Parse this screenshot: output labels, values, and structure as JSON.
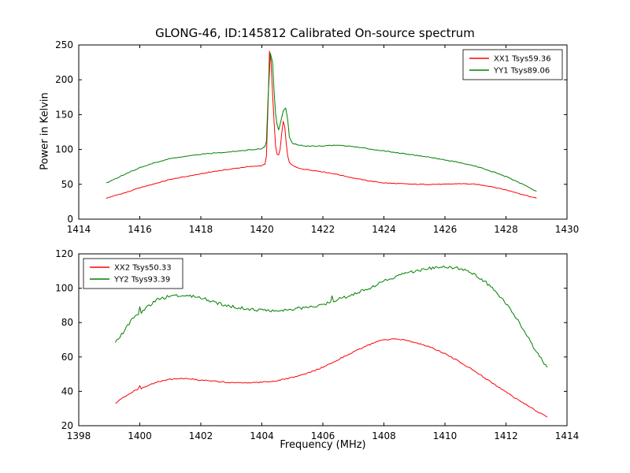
{
  "title": "GLONG-46, ID:145812 Calibrated On-source spectrum",
  "xlabel": "Frequency (MHz)",
  "ylabel": "Power in Kelvin",
  "colors": {
    "xx": "#ff0000",
    "yy": "#008000",
    "axes": "#000000",
    "background": "#ffffff"
  },
  "chart_data": [
    {
      "type": "line",
      "xlim": [
        1414,
        1430
      ],
      "ylim": [
        0,
        250
      ],
      "xticks": [
        1414,
        1416,
        1418,
        1420,
        1422,
        1424,
        1426,
        1428,
        1430
      ],
      "yticks": [
        0,
        50,
        100,
        150,
        200,
        250
      ],
      "grid": false,
      "legend_position": "upper right",
      "series": [
        {
          "name": "XX1 Tsys59.36",
          "color": "#ff0000",
          "noise": 0.5,
          "points": [
            [
              1414.9,
              30
            ],
            [
              1415.2,
              34
            ],
            [
              1415.6,
              39
            ],
            [
              1416.0,
              45
            ],
            [
              1416.5,
              51
            ],
            [
              1417.0,
              57
            ],
            [
              1417.5,
              61
            ],
            [
              1418.0,
              65
            ],
            [
              1418.5,
              69
            ],
            [
              1419.0,
              72
            ],
            [
              1419.5,
              75
            ],
            [
              1419.8,
              76
            ],
            [
              1420.0,
              77
            ],
            [
              1420.1,
              79
            ],
            [
              1420.15,
              90
            ],
            [
              1420.2,
              160
            ],
            [
              1420.25,
              241
            ],
            [
              1420.3,
              228
            ],
            [
              1420.35,
              180
            ],
            [
              1420.4,
              140
            ],
            [
              1420.45,
              105
            ],
            [
              1420.5,
              93
            ],
            [
              1420.55,
              92
            ],
            [
              1420.6,
              100
            ],
            [
              1420.65,
              122
            ],
            [
              1420.7,
              140
            ],
            [
              1420.75,
              133
            ],
            [
              1420.8,
              108
            ],
            [
              1420.85,
              90
            ],
            [
              1420.9,
              82
            ],
            [
              1421.0,
              77
            ],
            [
              1421.2,
              73
            ],
            [
              1421.5,
              71
            ],
            [
              1422.0,
              68
            ],
            [
              1422.5,
              64
            ],
            [
              1423.0,
              59
            ],
            [
              1423.5,
              55
            ],
            [
              1424.0,
              52
            ],
            [
              1424.5,
              51
            ],
            [
              1425.0,
              50
            ],
            [
              1425.5,
              50
            ],
            [
              1426.0,
              50
            ],
            [
              1426.5,
              51
            ],
            [
              1427.0,
              50
            ],
            [
              1427.5,
              47
            ],
            [
              1428.0,
              42
            ],
            [
              1428.5,
              36
            ],
            [
              1429.0,
              30
            ]
          ]
        },
        {
          "name": "YY1 Tsys89.06",
          "color": "#008000",
          "noise": 0.6,
          "points": [
            [
              1414.9,
              52
            ],
            [
              1415.2,
              58
            ],
            [
              1415.6,
              66
            ],
            [
              1416.0,
              74
            ],
            [
              1416.5,
              81
            ],
            [
              1417.0,
              87
            ],
            [
              1417.5,
              90
            ],
            [
              1418.0,
              93
            ],
            [
              1418.5,
              95
            ],
            [
              1419.0,
              97
            ],
            [
              1419.5,
              99
            ],
            [
              1419.8,
              100
            ],
            [
              1420.0,
              101
            ],
            [
              1420.1,
              104
            ],
            [
              1420.15,
              112
            ],
            [
              1420.2,
              170
            ],
            [
              1420.28,
              238
            ],
            [
              1420.35,
              225
            ],
            [
              1420.4,
              185
            ],
            [
              1420.45,
              152
            ],
            [
              1420.5,
              135
            ],
            [
              1420.55,
              128
            ],
            [
              1420.6,
              136
            ],
            [
              1420.7,
              155
            ],
            [
              1420.78,
              160
            ],
            [
              1420.85,
              142
            ],
            [
              1420.9,
              118
            ],
            [
              1421.0,
              109
            ],
            [
              1421.2,
              106
            ],
            [
              1421.5,
              105
            ],
            [
              1422.0,
              105
            ],
            [
              1422.3,
              106
            ],
            [
              1422.6,
              106
            ],
            [
              1423.0,
              104
            ],
            [
              1423.5,
              101
            ],
            [
              1424.0,
              98
            ],
            [
              1424.5,
              95
            ],
            [
              1425.0,
              92
            ],
            [
              1425.5,
              89
            ],
            [
              1426.0,
              85
            ],
            [
              1426.5,
              81
            ],
            [
              1427.0,
              76
            ],
            [
              1427.5,
              69
            ],
            [
              1428.0,
              61
            ],
            [
              1428.5,
              51
            ],
            [
              1429.0,
              40
            ]
          ]
        }
      ]
    },
    {
      "type": "line",
      "xlim": [
        1398,
        1414
      ],
      "ylim": [
        20,
        120
      ],
      "xticks": [
        1398,
        1400,
        1402,
        1404,
        1406,
        1408,
        1410,
        1412,
        1414
      ],
      "yticks": [
        20,
        40,
        60,
        80,
        100,
        120
      ],
      "grid": false,
      "legend_position": "upper left",
      "series": [
        {
          "name": "XX2 Tsys50.33",
          "color": "#ff0000",
          "noise": 0.35,
          "points": [
            [
              1399.2,
              33
            ],
            [
              1399.4,
              36
            ],
            [
              1399.6,
              38
            ],
            [
              1399.8,
              40
            ],
            [
              1399.95,
              41.5
            ],
            [
              1400.0,
              43
            ],
            [
              1400.05,
              41.5
            ],
            [
              1400.3,
              43.5
            ],
            [
              1400.6,
              45.5
            ],
            [
              1401.0,
              47
            ],
            [
              1401.3,
              47.5
            ],
            [
              1401.6,
              47.3
            ],
            [
              1402.0,
              46.5
            ],
            [
              1402.5,
              45.7
            ],
            [
              1403.0,
              45.2
            ],
            [
              1403.5,
              45.0
            ],
            [
              1404.0,
              45.3
            ],
            [
              1404.5,
              46.2
            ],
            [
              1405.0,
              48
            ],
            [
              1405.5,
              50.5
            ],
            [
              1406.0,
              54
            ],
            [
              1406.5,
              58.5
            ],
            [
              1407.0,
              63
            ],
            [
              1407.5,
              67
            ],
            [
              1407.8,
              69
            ],
            [
              1408.0,
              70
            ],
            [
              1408.3,
              70.3
            ],
            [
              1408.6,
              70
            ],
            [
              1409.0,
              68.5
            ],
            [
              1409.5,
              66
            ],
            [
              1410.0,
              62
            ],
            [
              1410.5,
              57
            ],
            [
              1411.0,
              51.5
            ],
            [
              1411.5,
              45.5
            ],
            [
              1412.0,
              39.5
            ],
            [
              1412.5,
              34
            ],
            [
              1413.0,
              28.5
            ],
            [
              1413.35,
              25
            ]
          ]
        },
        {
          "name": "YY2 Tsys93.39",
          "color": "#008000",
          "noise": 0.9,
          "points": [
            [
              1399.2,
              68
            ],
            [
              1399.4,
              73
            ],
            [
              1399.6,
              78
            ],
            [
              1399.8,
              83
            ],
            [
              1399.95,
              85
            ],
            [
              1400.0,
              89
            ],
            [
              1400.05,
              86
            ],
            [
              1400.3,
              90
            ],
            [
              1400.6,
              93.5
            ],
            [
              1401.0,
              95.5
            ],
            [
              1401.3,
              96
            ],
            [
              1401.6,
              95.8
            ],
            [
              1402.0,
              94.5
            ],
            [
              1402.5,
              91.5
            ],
            [
              1403.0,
              89.5
            ],
            [
              1403.5,
              88
            ],
            [
              1404.0,
              87.2
            ],
            [
              1404.5,
              87
            ],
            [
              1405.0,
              87.8
            ],
            [
              1405.5,
              89
            ],
            [
              1406.0,
              90.5
            ],
            [
              1406.25,
              92
            ],
            [
              1406.3,
              95
            ],
            [
              1406.35,
              92.5
            ],
            [
              1406.6,
              94
            ],
            [
              1407.0,
              96.5
            ],
            [
              1407.5,
              100
            ],
            [
              1408.0,
              104
            ],
            [
              1408.5,
              107.5
            ],
            [
              1409.0,
              110
            ],
            [
              1409.5,
              111.5
            ],
            [
              1410.0,
              112.5
            ],
            [
              1410.3,
              112
            ],
            [
              1410.6,
              111
            ],
            [
              1411.0,
              107.5
            ],
            [
              1411.3,
              104
            ],
            [
              1411.6,
              99
            ],
            [
              1412.0,
              91
            ],
            [
              1412.4,
              81
            ],
            [
              1412.8,
              69
            ],
            [
              1413.1,
              60
            ],
            [
              1413.35,
              54
            ]
          ]
        }
      ]
    }
  ]
}
